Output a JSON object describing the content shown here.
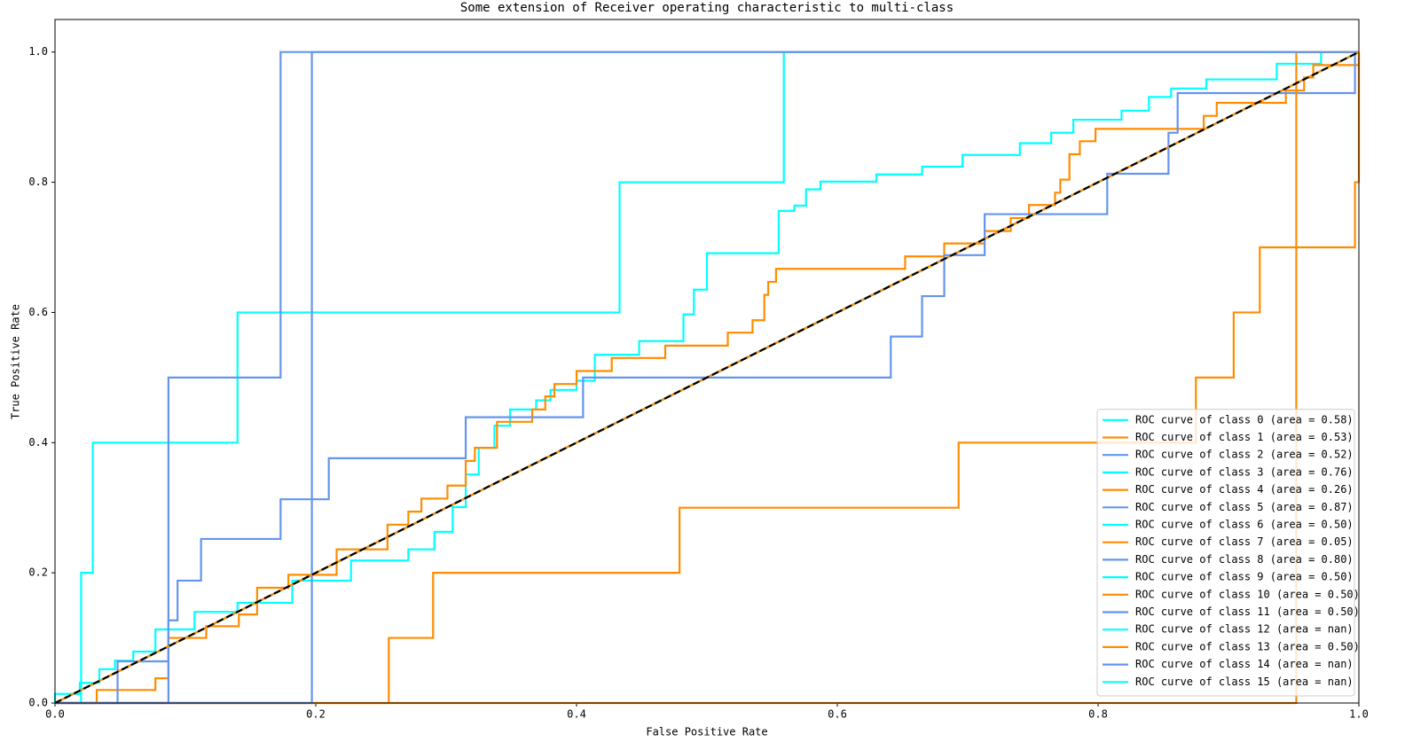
{
  "chart_data": {
    "type": "line",
    "title": "Some extension of Receiver operating characteristic to multi-class",
    "x_label": "False Positive Rate",
    "y_label": "True Positive Rate",
    "xlim": [
      0,
      1
    ],
    "ylim": [
      0,
      1.05
    ],
    "xticks": [
      {
        "value": 0,
        "label": "0.0"
      },
      0.2,
      0.4,
      0.6,
      0.8,
      {
        "value": 1,
        "label": "1.0"
      }
    ],
    "yticks": [
      {
        "value": 0,
        "label": "0.0"
      },
      0.2,
      0.4,
      0.6,
      0.8,
      {
        "value": 1,
        "label": "1.0"
      }
    ],
    "legend": "lower right",
    "series": [
      {
        "name": "ROC curve of class 0 (area = 0.58)",
        "color": "#00ffff",
        "x": [
          0,
          0,
          0.019,
          0.019,
          0.034,
          0.034,
          0.046,
          0.046,
          0.06,
          0.06,
          0.077,
          0.077,
          0.107,
          0.107,
          0.14,
          0.14,
          0.182,
          0.182,
          0.227,
          0.227,
          0.271,
          0.271,
          0.291,
          0.291,
          0.305,
          0.305,
          0.315,
          0.315,
          0.325,
          0.325,
          0.337,
          0.337,
          0.349,
          0.349,
          0.369,
          0.369,
          0.38,
          0.38,
          0.4,
          0.4,
          0.414,
          0.414,
          0.448,
          0.448,
          0.482,
          0.482,
          0.49,
          0.49,
          0.5,
          0.5,
          0.555,
          0.555,
          0.567,
          0.567,
          0.576,
          0.576,
          0.587,
          0.587,
          0.63,
          0.63,
          0.665,
          0.665,
          0.696,
          0.696,
          0.74,
          0.74,
          0.764,
          0.764,
          0.781,
          0.781,
          0.818,
          0.818,
          0.839,
          0.839,
          0.856,
          0.856,
          0.883,
          0.883,
          0.937,
          0.937,
          0.971,
          0.971,
          1
        ],
        "values": [
          0,
          0.014,
          0.014,
          0.031,
          0.031,
          0.052,
          0.052,
          0.065,
          0.065,
          0.079,
          0.079,
          0.113,
          0.113,
          0.14,
          0.14,
          0.154,
          0.154,
          0.188,
          0.188,
          0.219,
          0.219,
          0.236,
          0.236,
          0.263,
          0.263,
          0.301,
          0.301,
          0.351,
          0.351,
          0.392,
          0.392,
          0.426,
          0.426,
          0.451,
          0.451,
          0.465,
          0.465,
          0.481,
          0.481,
          0.495,
          0.495,
          0.535,
          0.535,
          0.556,
          0.556,
          0.597,
          0.597,
          0.635,
          0.635,
          0.691,
          0.691,
          0.756,
          0.756,
          0.764,
          0.764,
          0.789,
          0.789,
          0.801,
          0.801,
          0.812,
          0.812,
          0.824,
          0.824,
          0.842,
          0.842,
          0.86,
          0.86,
          0.876,
          0.876,
          0.896,
          0.896,
          0.91,
          0.91,
          0.931,
          0.931,
          0.944,
          0.944,
          0.958,
          0.958,
          0.982,
          0.982,
          1,
          1
        ]
      },
      {
        "name": "ROC curve of class 1 (area = 0.53)",
        "color": "#ff8c00",
        "x": [
          0,
          0.032,
          0.032,
          0.077,
          0.077,
          0.087,
          0.087,
          0.116,
          0.116,
          0.141,
          0.141,
          0.155,
          0.155,
          0.179,
          0.179,
          0.216,
          0.216,
          0.255,
          0.255,
          0.271,
          0.271,
          0.281,
          0.281,
          0.301,
          0.301,
          0.315,
          0.315,
          0.322,
          0.322,
          0.339,
          0.339,
          0.366,
          0.366,
          0.376,
          0.376,
          0.383,
          0.383,
          0.4,
          0.4,
          0.427,
          0.427,
          0.468,
          0.468,
          0.516,
          0.516,
          0.535,
          0.535,
          0.544,
          0.544,
          0.547,
          0.547,
          0.553,
          0.553,
          0.652,
          0.652,
          0.682,
          0.682,
          0.713,
          0.713,
          0.733,
          0.733,
          0.747,
          0.747,
          0.767,
          0.767,
          0.771,
          0.771,
          0.778,
          0.778,
          0.786,
          0.786,
          0.798,
          0.798,
          0.881,
          0.881,
          0.891,
          0.891,
          0.944,
          0.944,
          0.958,
          0.958,
          0.965,
          0.965,
          1,
          1
        ],
        "values": [
          0,
          0,
          0.02,
          0.02,
          0.038,
          0.038,
          0.1,
          0.1,
          0.118,
          0.118,
          0.136,
          0.136,
          0.177,
          0.177,
          0.197,
          0.197,
          0.236,
          0.236,
          0.274,
          0.274,
          0.294,
          0.294,
          0.314,
          0.314,
          0.334,
          0.334,
          0.372,
          0.372,
          0.392,
          0.392,
          0.432,
          0.432,
          0.451,
          0.451,
          0.471,
          0.471,
          0.49,
          0.49,
          0.51,
          0.51,
          0.53,
          0.53,
          0.549,
          0.549,
          0.569,
          0.569,
          0.588,
          0.588,
          0.627,
          0.627,
          0.647,
          0.647,
          0.667,
          0.667,
          0.686,
          0.686,
          0.706,
          0.706,
          0.725,
          0.725,
          0.745,
          0.745,
          0.765,
          0.765,
          0.784,
          0.784,
          0.804,
          0.804,
          0.843,
          0.843,
          0.863,
          0.863,
          0.882,
          0.882,
          0.902,
          0.902,
          0.922,
          0.922,
          0.941,
          0.941,
          0.961,
          0.961,
          0.98,
          0.98,
          1
        ]
      },
      {
        "name": "ROC curve of class 2 (area = 0.52)",
        "color": "#6495ed",
        "x": [
          0,
          0.048,
          0.048,
          0.087,
          0.087,
          0.094,
          0.094,
          0.112,
          0.112,
          0.173,
          0.173,
          0.21,
          0.21,
          0.315,
          0.315,
          0.405,
          0.405,
          0.641,
          0.641,
          0.665,
          0.665,
          0.682,
          0.682,
          0.713,
          0.713,
          0.807,
          0.807,
          0.854,
          0.854,
          0.861,
          0.861,
          0.997,
          0.997,
          1
        ],
        "values": [
          0,
          0,
          0.064,
          0.064,
          0.127,
          0.127,
          0.188,
          0.188,
          0.252,
          0.252,
          0.313,
          0.313,
          0.376,
          0.376,
          0.439,
          0.439,
          0.5,
          0.5,
          0.563,
          0.563,
          0.625,
          0.625,
          0.688,
          0.688,
          0.751,
          0.751,
          0.813,
          0.813,
          0.876,
          0.876,
          0.937,
          0.937,
          1,
          1
        ]
      },
      {
        "name": "ROC curve of class 3 (area = 0.76)",
        "color": "#00ffff",
        "x": [
          0,
          0.02,
          0.02,
          0.029,
          0.029,
          0.14,
          0.14,
          0.433,
          0.433,
          0.559,
          0.559,
          1
        ],
        "values": [
          0,
          0,
          0.2,
          0.2,
          0.4,
          0.4,
          0.6,
          0.6,
          0.8,
          0.8,
          1,
          1
        ]
      },
      {
        "name": "ROC curve of class 4 (area = 0.26)",
        "color": "#ff8c00",
        "x": [
          0,
          0.256,
          0.256,
          0.29,
          0.29,
          0.479,
          0.479,
          0.693,
          0.693,
          0.875,
          0.875,
          0.904,
          0.904,
          0.924,
          0.924,
          0.997,
          0.997,
          1,
          1
        ],
        "values": [
          0,
          0,
          0.1,
          0.1,
          0.2,
          0.2,
          0.3,
          0.3,
          0.4,
          0.4,
          0.5,
          0.5,
          0.6,
          0.6,
          0.7,
          0.7,
          0.8,
          0.8,
          1
        ]
      },
      {
        "name": "ROC curve of class 5 (area = 0.87)",
        "color": "#6495ed",
        "x": [
          0,
          0.087,
          0.087,
          0.173,
          0.173,
          1
        ],
        "values": [
          0,
          0,
          0.5,
          0.5,
          1,
          1
        ]
      },
      {
        "name": "ROC curve of class 6 (area = 0.50)",
        "color": "#00ffff",
        "x": [
          0,
          1
        ],
        "values": [
          0,
          1
        ]
      },
      {
        "name": "ROC curve of class 7 (area = 0.05)",
        "color": "#ff8c00",
        "x": [
          0,
          0.952,
          0.952,
          1
        ],
        "values": [
          0,
          0,
          1,
          1
        ]
      },
      {
        "name": "ROC curve of class 8 (area = 0.80)",
        "color": "#6495ed",
        "x": [
          0,
          0.197,
          0.197,
          1
        ],
        "values": [
          0,
          0,
          1,
          1
        ]
      },
      {
        "name": "ROC curve of class 9 (area = 0.50)",
        "color": "#00ffff",
        "x": [
          0,
          1
        ],
        "values": [
          0,
          1
        ]
      },
      {
        "name": "ROC curve of class 10 (area = 0.50)",
        "color": "#ff8c00",
        "x": [
          0,
          1
        ],
        "values": [
          0,
          1
        ]
      },
      {
        "name": "ROC curve of class 11 (area = 0.50)",
        "color": "#6495ed",
        "x": [
          0,
          1
        ],
        "values": [
          0,
          1
        ]
      },
      {
        "name": "ROC curve of class 12 (area = nan)",
        "color": "#00ffff",
        "x": [
          0,
          1
        ],
        "values": [
          null,
          null
        ]
      },
      {
        "name": "ROC curve of class 13 (area = 0.50)",
        "color": "#ff8c00",
        "x": [
          0,
          1
        ],
        "values": [
          0,
          1
        ]
      },
      {
        "name": "ROC curve of class 14 (area = nan)",
        "color": "#6495ed",
        "x": [
          0,
          1
        ],
        "values": [
          null,
          null
        ]
      },
      {
        "name": "ROC curve of class 15 (area = nan)",
        "color": "#00ffff",
        "x": [
          0,
          1
        ],
        "values": [
          null,
          null
        ]
      }
    ],
    "diagonal": {
      "x": [
        0,
        1
      ],
      "values": [
        0,
        1
      ],
      "color": "#000000"
    }
  }
}
